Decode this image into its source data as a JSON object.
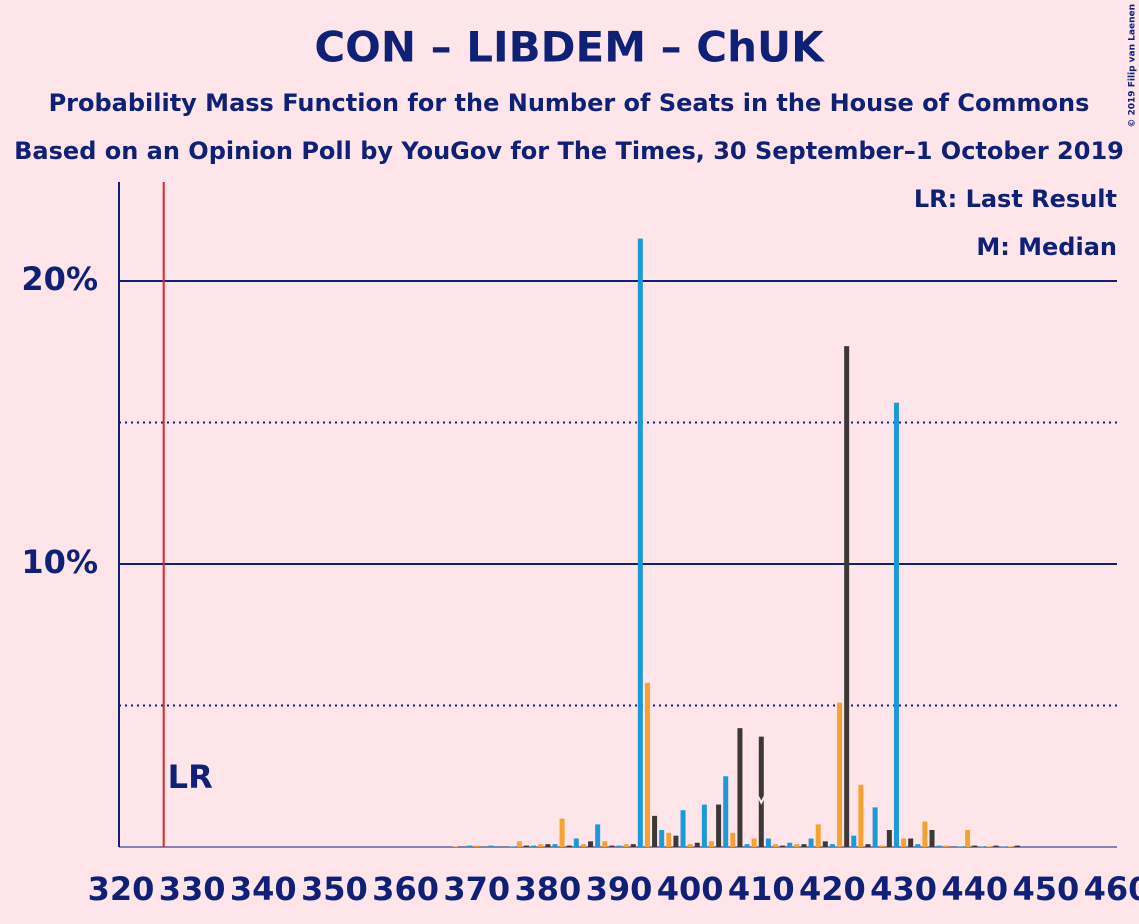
{
  "chart_data": {
    "type": "bar",
    "title": "CON – LIBDEM – ChUK",
    "subtitle": "Probability Mass Function for the Number of Seats in the House of Commons",
    "subtitle2": "Based on an Opinion Poll by YouGov for The Times, 30 September–1 October 2019",
    "credit": "© 2019 Filip van Laenen",
    "legend": [
      "LR: Last Result",
      "M: Median"
    ],
    "last_result_label": "LR",
    "last_result": 326,
    "median": 410,
    "bar_colors": [
      "#1b9ad6",
      "#f5a232",
      "#3d3836"
    ],
    "x": [
      320,
      321,
      322,
      323,
      324,
      325,
      326,
      327,
      328,
      329,
      330,
      331,
      332,
      333,
      334,
      335,
      336,
      337,
      338,
      339,
      340,
      341,
      342,
      343,
      344,
      345,
      346,
      347,
      348,
      349,
      350,
      351,
      352,
      353,
      354,
      355,
      356,
      357,
      358,
      359,
      360,
      361,
      362,
      363,
      364,
      365,
      366,
      367,
      368,
      369,
      370,
      371,
      372,
      373,
      374,
      375,
      376,
      377,
      378,
      379,
      380,
      381,
      382,
      383,
      384,
      385,
      386,
      387,
      388,
      389,
      390,
      391,
      392,
      393,
      394,
      395,
      396,
      397,
      398,
      399,
      400,
      401,
      402,
      403,
      404,
      405,
      406,
      407,
      408,
      409,
      410,
      411,
      412,
      413,
      414,
      415,
      416,
      417,
      418,
      419,
      420,
      421,
      422,
      423,
      424,
      425,
      426,
      427,
      428,
      429,
      430,
      431,
      432,
      433,
      434,
      435,
      436,
      437,
      438,
      439,
      440,
      441,
      442,
      443,
      444,
      445,
      446,
      447,
      448,
      449,
      450,
      451,
      452,
      453,
      454,
      455,
      456,
      457,
      458,
      459,
      460
    ],
    "values": [
      0,
      0,
      0,
      0,
      0,
      0,
      0,
      0,
      0,
      0,
      0,
      0,
      0,
      0,
      0,
      0,
      0,
      0,
      0,
      0,
      0,
      0,
      0,
      0,
      0,
      0,
      0,
      0,
      0,
      0,
      0,
      0,
      0,
      0,
      0,
      0,
      0,
      0,
      0,
      0,
      0,
      0,
      0,
      0,
      0,
      0,
      0,
      0.02,
      0,
      0.05,
      0.05,
      0,
      0.05,
      0,
      0.02,
      0.02,
      0.2,
      0.05,
      0.05,
      0.1,
      0.1,
      0.1,
      1.0,
      0.05,
      0.3,
      0.1,
      0.2,
      0.8,
      0.2,
      0.05,
      0.05,
      0.1,
      0.1,
      21.5,
      5.8,
      1.1,
      0.6,
      0.5,
      0.4,
      1.3,
      0.1,
      0.15,
      1.5,
      0.2,
      1.5,
      2.5,
      0.5,
      4.2,
      0.1,
      0.3,
      3.9,
      0.3,
      0.1,
      0.05,
      0.15,
      0.1,
      0.1,
      0.3,
      0.8,
      0.2,
      0.1,
      5.1,
      17.7,
      0.4,
      2.2,
      0.1,
      1.4,
      0.05,
      0.6,
      15.7,
      0.3,
      0.3,
      0.1,
      0.9,
      0.6,
      0.05,
      0.05,
      0.02,
      0.02,
      0.6,
      0.05,
      0.02,
      0.02,
      0.05,
      0.02,
      0.02,
      0.05,
      0,
      0,
      0,
      0,
      0,
      0,
      0,
      0,
      0,
      0,
      0,
      0,
      0,
      0
    ],
    "xlim": [
      320,
      460
    ],
    "xticks": [
      320,
      330,
      340,
      350,
      360,
      370,
      380,
      390,
      400,
      410,
      420,
      430,
      440,
      450,
      460
    ],
    "ylim": [
      0,
      23.5
    ],
    "yticks": [
      {
        "value": 10,
        "label": "10%"
      },
      {
        "value": 20,
        "label": "20%"
      }
    ],
    "minor_gridlines": [
      5,
      15
    ],
    "grid": true
  }
}
